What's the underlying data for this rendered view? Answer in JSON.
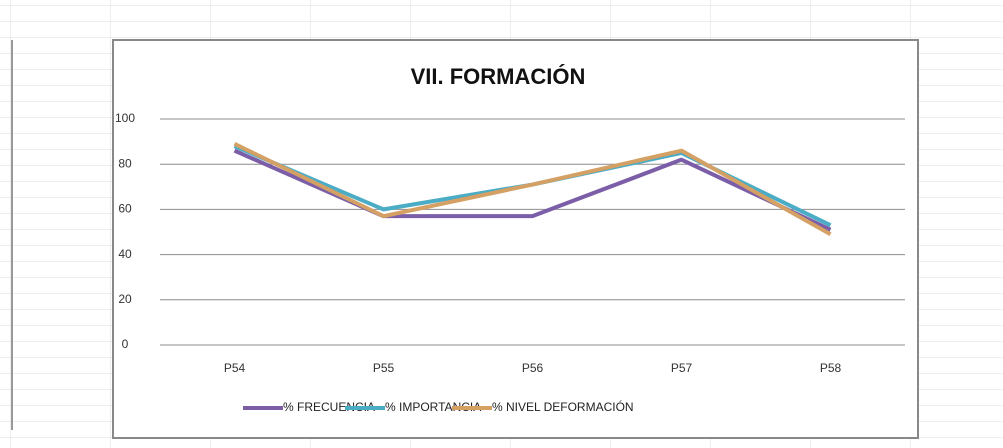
{
  "chart_data": {
    "type": "line",
    "title": "VII. FORMACIÓN",
    "categories": [
      "P54",
      "P55",
      "P56",
      "P57",
      "P58"
    ],
    "series": [
      {
        "name": "% FRECUENCIA",
        "color": "#7b5ea7",
        "values": [
          86,
          57,
          57,
          82,
          51
        ]
      },
      {
        "name": "% IMPORTANCIA",
        "color": "#4bacc6",
        "values": [
          88,
          60,
          71,
          85,
          53
        ]
      },
      {
        "name": "% NIVEL DEFORMACIÓN",
        "color": "#d4a064",
        "values": [
          89,
          57,
          71,
          86,
          49
        ]
      }
    ],
    "ylim": [
      0,
      100
    ],
    "yticks": [
      0,
      20,
      40,
      60,
      80,
      100
    ],
    "grid": true,
    "legend": "bottom"
  }
}
